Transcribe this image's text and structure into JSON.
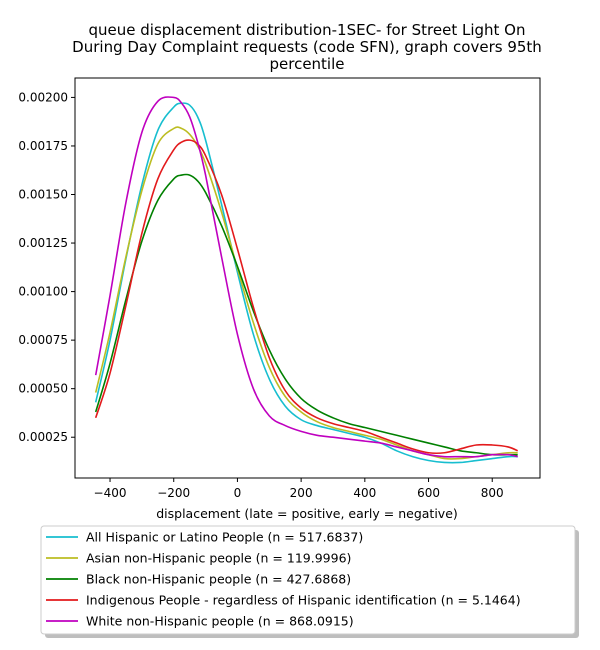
{
  "chart_data": {
    "type": "line",
    "title_lines": [
      "queue displacement distribution-1SEC-  for Street Light On",
      "During Day Complaint  requests (code SFN), graph covers 95th",
      "percentile"
    ],
    "xlabel": "displacement (late = positive, early = negative)",
    "ylabel": "",
    "xlim": [
      -510,
      950
    ],
    "ylim": [
      4e-05,
      0.0021
    ],
    "xticks": [
      -400,
      -200,
      0,
      200,
      400,
      600,
      800
    ],
    "xtick_labels": [
      "−400",
      "−200",
      "0",
      "200",
      "400",
      "600",
      "800"
    ],
    "yticks": [
      0.00025,
      0.0005,
      0.00075,
      0.001,
      0.00125,
      0.0015,
      0.00175,
      0.002
    ],
    "ytick_labels": [
      "0.00025",
      "0.00050",
      "0.00075",
      "0.00100",
      "0.00125",
      "0.00150",
      "0.00175",
      "0.00200"
    ],
    "grid": false,
    "legend_position": "below-plot",
    "x": [
      -445,
      -400,
      -350,
      -300,
      -250,
      -200,
      -175,
      -150,
      -125,
      -100,
      -50,
      0,
      50,
      100,
      150,
      200,
      250,
      300,
      350,
      400,
      450,
      500,
      550,
      600,
      650,
      700,
      750,
      800,
      850,
      880
    ],
    "series": [
      {
        "name": "All Hispanic or Latino People (n = 517.6837)",
        "color": "#17becf",
        "values": [
          0.00043,
          0.00075,
          0.00117,
          0.00155,
          0.00183,
          0.00195,
          0.00197,
          0.00196,
          0.0019,
          0.00178,
          0.00145,
          0.0011,
          0.00078,
          0.00055,
          0.00041,
          0.00034,
          0.00031,
          0.00029,
          0.00027,
          0.00025,
          0.00022,
          0.00018,
          0.00015,
          0.00013,
          0.00012,
          0.00012,
          0.00013,
          0.00014,
          0.00015,
          0.00015
        ]
      },
      {
        "name": "Asian non-Hispanic people (n = 119.9996)",
        "color": "#bcbd22",
        "values": [
          0.00048,
          0.00079,
          0.00118,
          0.00152,
          0.00176,
          0.00184,
          0.00184,
          0.00181,
          0.00175,
          0.00166,
          0.00141,
          0.00112,
          0.00084,
          0.00061,
          0.00046,
          0.00038,
          0.00033,
          0.0003,
          0.00028,
          0.00026,
          0.00024,
          0.00021,
          0.00018,
          0.00016,
          0.00014,
          0.00014,
          0.00015,
          0.00016,
          0.00017,
          0.00017
        ]
      },
      {
        "name": "Black non-Hispanic people (n = 427.6868)",
        "color": "#008000",
        "values": [
          0.00038,
          0.00063,
          0.00096,
          0.00126,
          0.00147,
          0.00158,
          0.0016,
          0.0016,
          0.00157,
          0.00151,
          0.00134,
          0.00113,
          0.0009,
          0.0007,
          0.00055,
          0.00045,
          0.00039,
          0.00035,
          0.00032,
          0.0003,
          0.00028,
          0.00026,
          0.00024,
          0.00022,
          0.0002,
          0.00018,
          0.00017,
          0.00016,
          0.00016,
          0.00016
        ]
      },
      {
        "name": "Indigenous People - regardless of Hispanic identification (n = 5.1464)",
        "color": "#e31a1c",
        "values": [
          0.00035,
          0.00058,
          0.00093,
          0.0013,
          0.00158,
          0.00173,
          0.00177,
          0.00178,
          0.00176,
          0.0017,
          0.0015,
          0.00122,
          0.00092,
          0.00066,
          0.00049,
          0.0004,
          0.00035,
          0.00032,
          0.0003,
          0.00028,
          0.00025,
          0.00022,
          0.00019,
          0.00017,
          0.00017,
          0.00019,
          0.00021,
          0.00021,
          0.0002,
          0.00018
        ]
      },
      {
        "name": "White non-Hispanic people (n = 868.0915)",
        "color": "#bf00bf",
        "values": [
          0.00057,
          0.00098,
          0.00146,
          0.00182,
          0.00198,
          0.002,
          0.00197,
          0.0019,
          0.00177,
          0.0016,
          0.00118,
          0.00078,
          0.0005,
          0.00036,
          0.00031,
          0.00028,
          0.00026,
          0.00025,
          0.00024,
          0.00023,
          0.00022,
          0.0002,
          0.00018,
          0.00016,
          0.00015,
          0.00015,
          0.00015,
          0.00016,
          0.00016,
          0.00015
        ]
      }
    ]
  }
}
